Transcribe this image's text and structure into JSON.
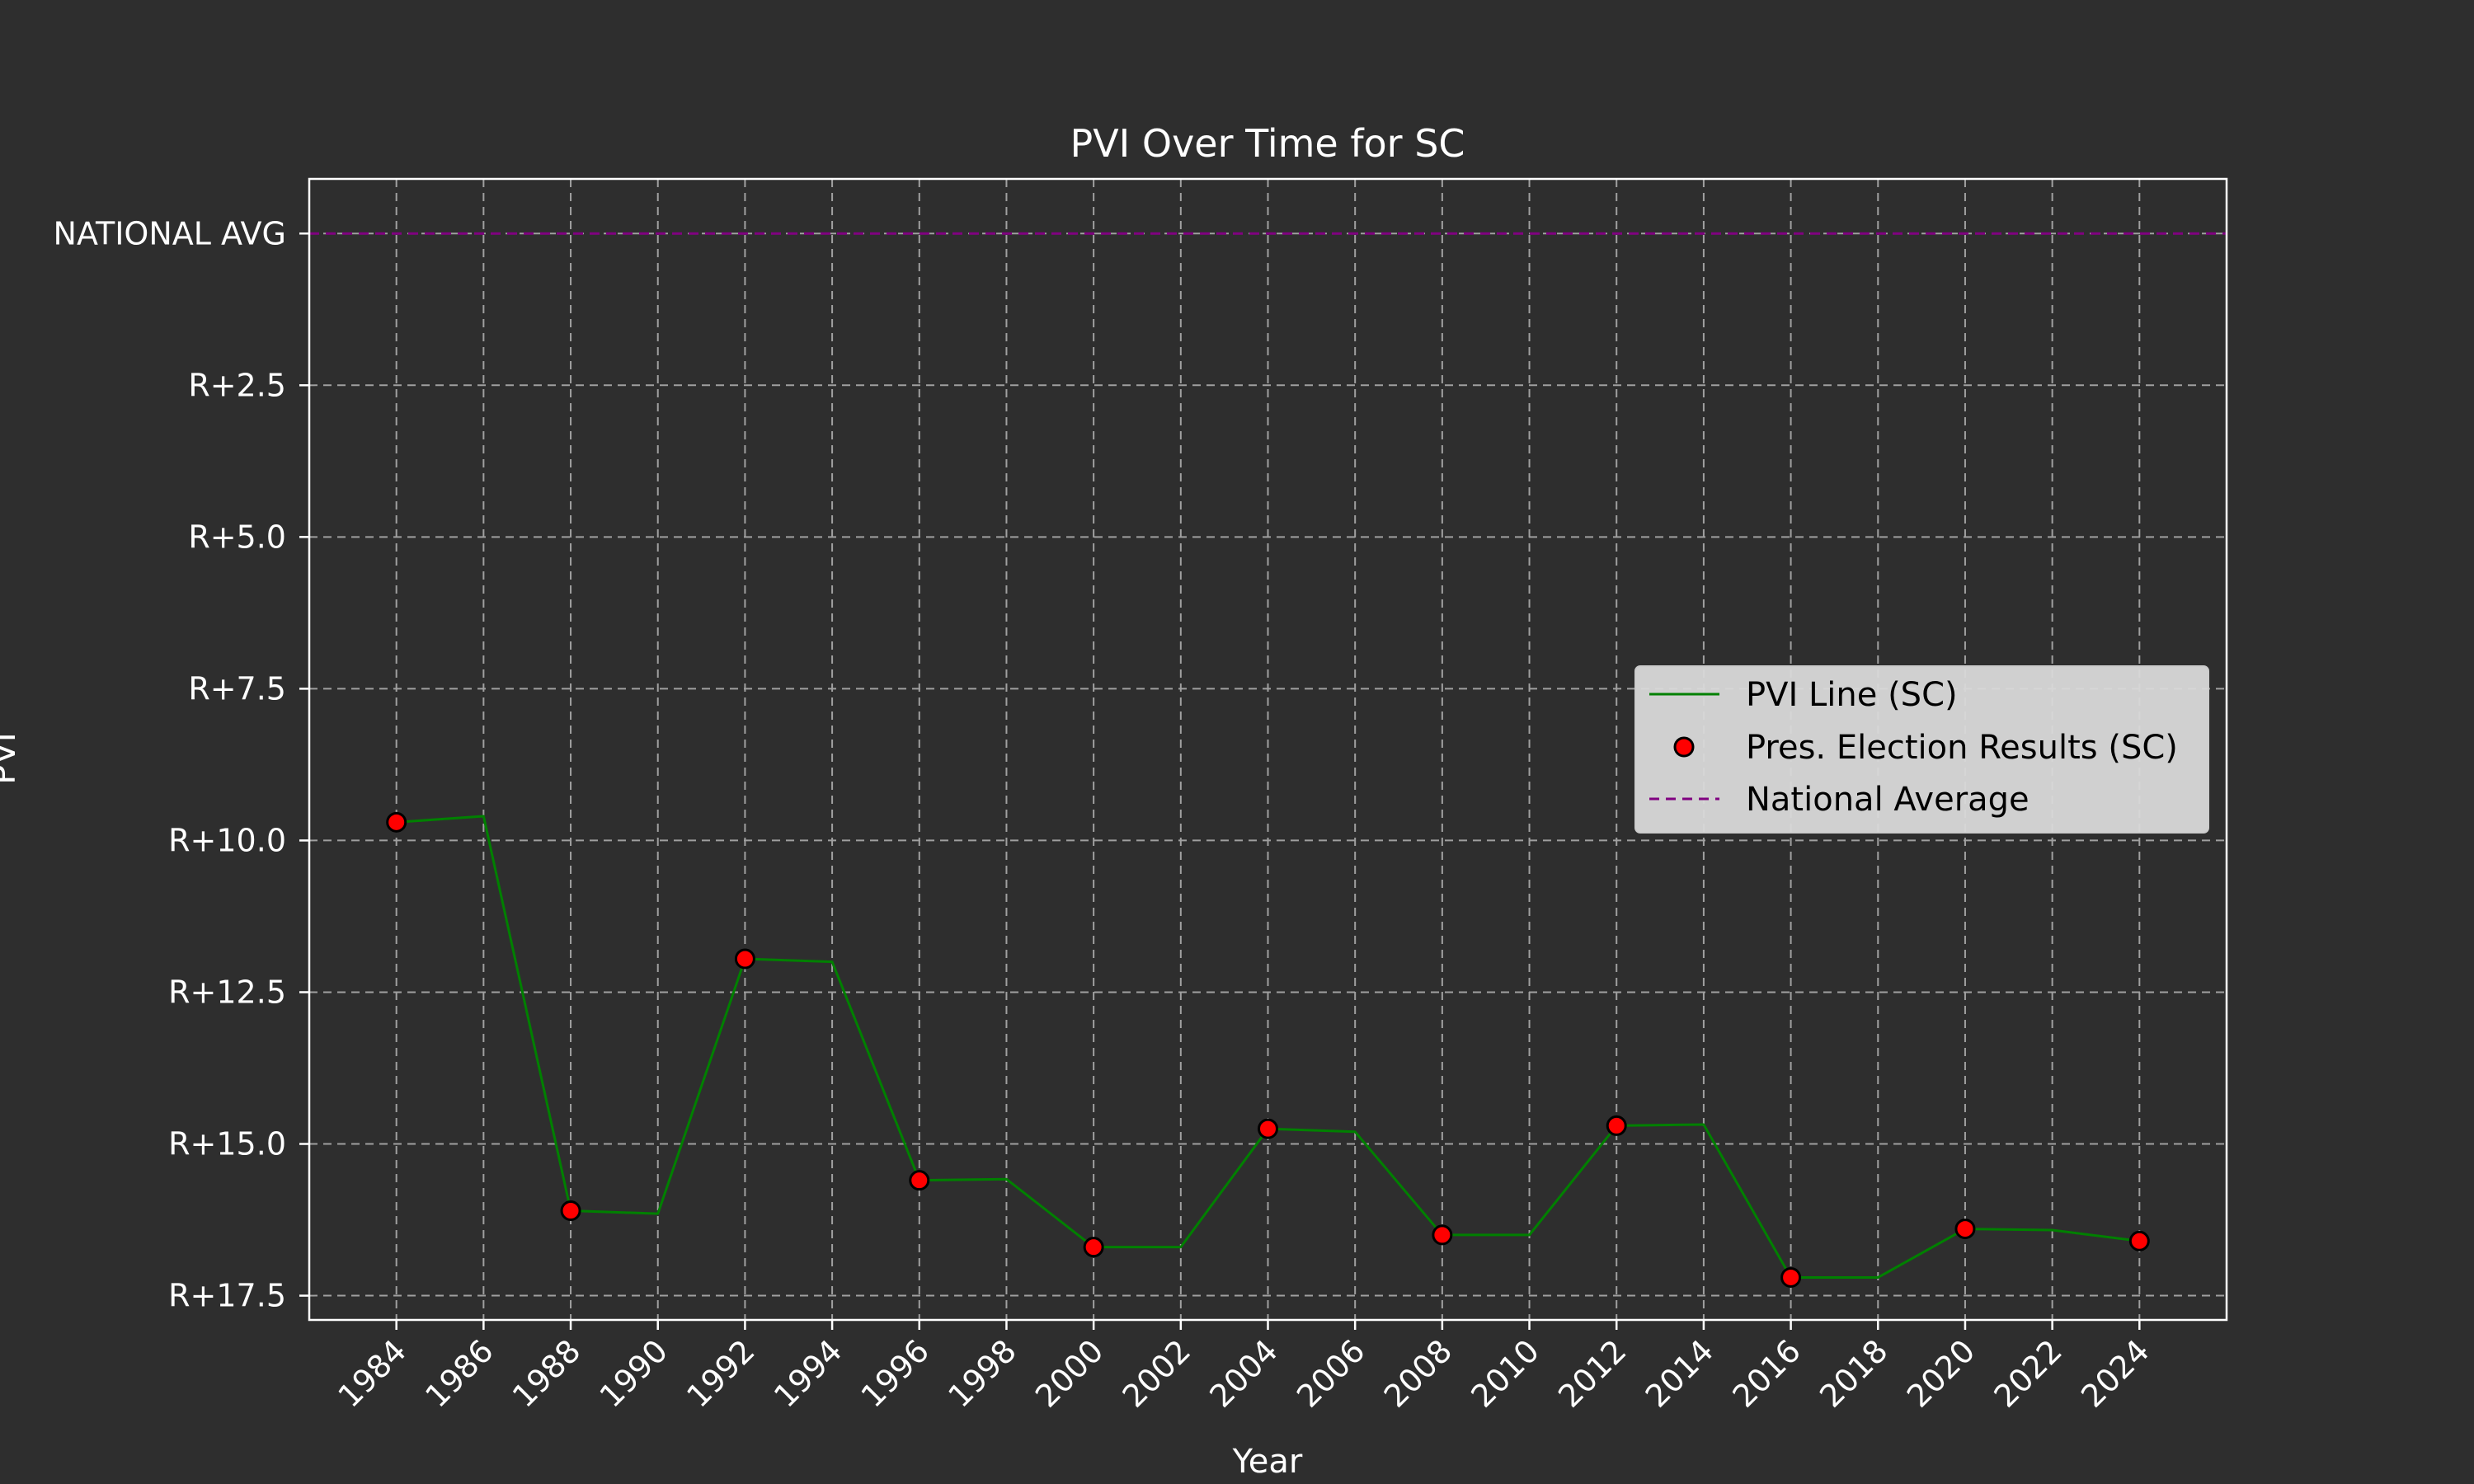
{
  "chart_data": {
    "type": "line",
    "title": "PVI Over Time for SC",
    "xlabel": "Year",
    "ylabel": "PVI",
    "x": [
      1984,
      1986,
      1988,
      1990,
      1992,
      1994,
      1996,
      1998,
      2000,
      2002,
      2004,
      2006,
      2008,
      2010,
      2012,
      2014,
      2016,
      2018,
      2020,
      2022,
      2024
    ],
    "x_ticks": [
      "1984",
      "1986",
      "1988",
      "1990",
      "1992",
      "1994",
      "1996",
      "1998",
      "2000",
      "2002",
      "2004",
      "2006",
      "2008",
      "2010",
      "2012",
      "2014",
      "2016",
      "2018",
      "2020",
      "2022",
      "2024"
    ],
    "xlim": [
      1982,
      2026
    ],
    "ylim": [
      0.9,
      -17.9
    ],
    "y_ticks": [
      0,
      -2.5,
      -5,
      -7.5,
      -10,
      -12.5,
      -15,
      -17.5
    ],
    "y_tick_labels": [
      "NATIONAL AVG",
      "R+2.5",
      "R+5.0",
      "R+7.5",
      "R+10.0",
      "R+12.5",
      "R+15.0",
      "R+17.5"
    ],
    "series": [
      {
        "name": "PVI Line (SC)",
        "kind": "line",
        "color": "#008000",
        "x": [
          1984,
          1986,
          1988,
          1990,
          1992,
          1994,
          1996,
          1998,
          2000,
          2002,
          2004,
          2006,
          2008,
          2010,
          2012,
          2014,
          2016,
          2018,
          2020,
          2022,
          2024
        ],
        "y": [
          -9.7,
          -9.6,
          -16.1,
          -16.15,
          -11.95,
          -12.0,
          -15.6,
          -15.58,
          -16.7,
          -16.7,
          -14.75,
          -14.8,
          -16.5,
          -16.5,
          -14.7,
          -14.68,
          -17.2,
          -17.2,
          -16.4,
          -16.42,
          -16.6
        ]
      },
      {
        "name": "Pres. Election Results (SC)",
        "kind": "scatter",
        "color": "#ff0000",
        "edge_color": "#000000",
        "x": [
          1984,
          1988,
          1992,
          1996,
          2000,
          2004,
          2008,
          2012,
          2016,
          2020,
          2024
        ],
        "y": [
          -9.7,
          -16.1,
          -11.95,
          -15.6,
          -16.7,
          -14.75,
          -16.5,
          -14.7,
          -17.2,
          -16.4,
          -16.6
        ]
      },
      {
        "name": "National Average",
        "kind": "hline",
        "color": "#800080",
        "y": 0
      }
    ],
    "grid": true,
    "legend_position": "right"
  },
  "colors": {
    "background": "#2e2e2e",
    "axes_frame": "#ffffff",
    "grid": "#a0a0a0",
    "legend_bg": "#d9d9d9"
  }
}
